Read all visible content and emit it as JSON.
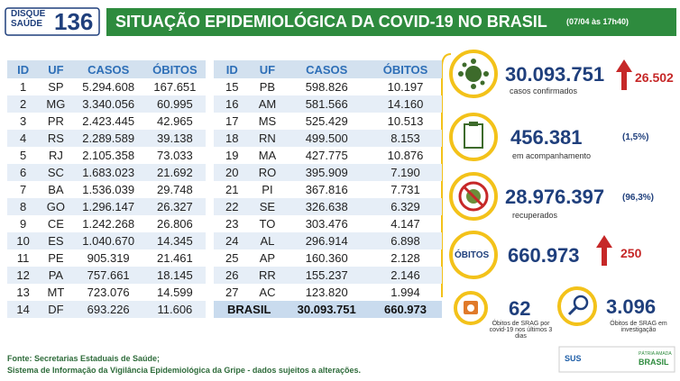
{
  "header": {
    "logo": {
      "line1": "DISQUE",
      "line2": "SAÚDE",
      "number": "136"
    },
    "title": "SITUAÇÃO EPIDEMIOLÓGICA DA COVID-19 NO BRASIL",
    "date": "(07/04 às 17h40)"
  },
  "table": {
    "columns": [
      "ID",
      "UF",
      "CASOS",
      "ÓBITOS"
    ],
    "rows": [
      [
        "1",
        "SP",
        "5.294.608",
        "167.651"
      ],
      [
        "2",
        "MG",
        "3.340.056",
        "60.995"
      ],
      [
        "3",
        "PR",
        "2.423.445",
        "42.965"
      ],
      [
        "4",
        "RS",
        "2.289.589",
        "39.138"
      ],
      [
        "5",
        "RJ",
        "2.105.358",
        "73.033"
      ],
      [
        "6",
        "SC",
        "1.683.023",
        "21.692"
      ],
      [
        "7",
        "BA",
        "1.536.039",
        "29.748"
      ],
      [
        "8",
        "GO",
        "1.296.147",
        "26.327"
      ],
      [
        "9",
        "CE",
        "1.242.268",
        "26.806"
      ],
      [
        "10",
        "ES",
        "1.040.670",
        "14.345"
      ],
      [
        "11",
        "PE",
        "905.319",
        "21.461"
      ],
      [
        "12",
        "PA",
        "757.661",
        "18.145"
      ],
      [
        "13",
        "MT",
        "723.076",
        "14.599"
      ],
      [
        "14",
        "DF",
        "693.226",
        "11.606"
      ],
      [
        "15",
        "PB",
        "598.826",
        "10.197"
      ],
      [
        "16",
        "AM",
        "581.566",
        "14.160"
      ],
      [
        "17",
        "MS",
        "525.429",
        "10.513"
      ],
      [
        "18",
        "RN",
        "499.500",
        "8.153"
      ],
      [
        "19",
        "MA",
        "427.775",
        "10.876"
      ],
      [
        "20",
        "RO",
        "395.909",
        "7.190"
      ],
      [
        "21",
        "PI",
        "367.816",
        "7.731"
      ],
      [
        "22",
        "SE",
        "326.638",
        "6.329"
      ],
      [
        "23",
        "TO",
        "303.476",
        "4.147"
      ],
      [
        "24",
        "AL",
        "296.914",
        "6.898"
      ],
      [
        "25",
        "AP",
        "160.360",
        "2.128"
      ],
      [
        "26",
        "RR",
        "155.237",
        "2.146"
      ],
      [
        "27",
        "AC",
        "123.820",
        "1.994"
      ]
    ],
    "total": {
      "label": "BRASIL",
      "cases": "30.093.751",
      "deaths": "660.973"
    }
  },
  "summary": {
    "confirmed": {
      "value": "30.093.751",
      "change": "26.502",
      "caption": "casos confirmados"
    },
    "monitoring": {
      "value": "456.381",
      "share": "(1,5%)",
      "caption": "em acompanhamento"
    },
    "recovered": {
      "value": "28.976.397",
      "share": "(96,3%)",
      "caption": "recuperados"
    },
    "deaths": {
      "label": "ÓBITOS",
      "value": "660.973",
      "change": "250"
    },
    "srag_recent": {
      "value": "62",
      "caption": "Óbitos de SRAG por covid-19 nos últimos 3 dias"
    },
    "srag_investigation": {
      "value": "3.096",
      "caption": "Óbitos de SRAG em investigação"
    }
  },
  "footer": {
    "source": "Fonte: Secretarias Estaduais de Saúde;",
    "note": "Sistema de Informação da Vigilância Epidemiológica da Gripe - dados sujeitos a alterações.",
    "logos": {
      "sus": "SUS",
      "motto": "PÁTRIA AMADA",
      "country": "BRASIL"
    }
  }
}
